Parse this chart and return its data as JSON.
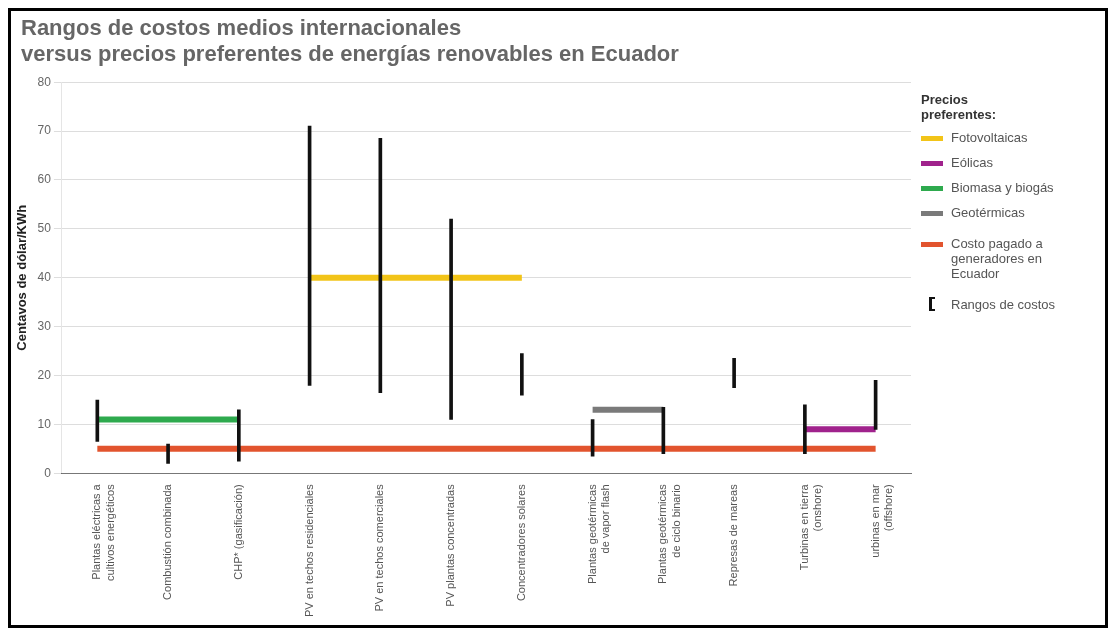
{
  "chart_data": {
    "type": "bar",
    "title": "Rangos de costos medios internacionales\nversus precios preferentes de energías renovables en Ecuador",
    "ylabel": "Centavos de dólar/KWh",
    "legend_title": "Precios preferentes:",
    "categories": [
      "Plantas eléctricas a\ncultivos energéticos",
      "Combustión combinada",
      "CHP* (gasificación)",
      "PV en techos residenciales",
      "PV en techos comerciales",
      "PV plantas concentradas",
      "Concentradores solares",
      "Plantas geotérmicas\nde vapor flash",
      "Plantas geotérmicas\nde ciclo binario",
      "Represas de mareas",
      "Turbinas en tierra\n(onshore)",
      "urbinas en mar\n(offshore)"
    ],
    "series": [
      {
        "name": "Fotovoltaicas",
        "type": "line",
        "color": "#f2c418",
        "values": [
          null,
          null,
          null,
          40,
          40,
          40,
          40,
          null,
          null,
          null,
          null,
          null
        ]
      },
      {
        "name": "Eólicas",
        "type": "line",
        "color": "#a0228c",
        "values": [
          null,
          null,
          null,
          null,
          null,
          null,
          null,
          null,
          null,
          null,
          9,
          9
        ]
      },
      {
        "name": "Biomasa y biogás",
        "type": "line",
        "color": "#2eaa4e",
        "values": [
          11,
          11,
          11,
          null,
          null,
          null,
          null,
          null,
          null,
          null,
          null,
          null
        ]
      },
      {
        "name": "Geotérmicas",
        "type": "line",
        "color": "#7a7a7a",
        "values": [
          null,
          null,
          null,
          null,
          null,
          null,
          null,
          13,
          13,
          null,
          null,
          null
        ]
      },
      {
        "name": "Costo pagado a generadores en Ecuador",
        "type": "line",
        "color": "#e2542e",
        "values": [
          5,
          5,
          5,
          5,
          5,
          5,
          5,
          5,
          5,
          5,
          5,
          5
        ]
      },
      {
        "name": "Rangos de costos",
        "color": "#111111",
        "base": [
          6.5,
          2,
          2.5,
          18,
          16.5,
          11,
          16,
          3.5,
          4,
          17.5,
          4,
          9
        ],
        "values": [
          8.5,
          4,
          10.5,
          53,
          52,
          41,
          8.5,
          7.5,
          9.5,
          6,
          10,
          10
        ]
      }
    ],
    "ylim": [
      0,
      80
    ],
    "yticks": [
      0,
      10,
      20,
      30,
      40,
      50,
      60,
      70,
      80
    ],
    "grid": "y",
    "legend": "right",
    "marker": "none",
    "line_style": "solid"
  }
}
